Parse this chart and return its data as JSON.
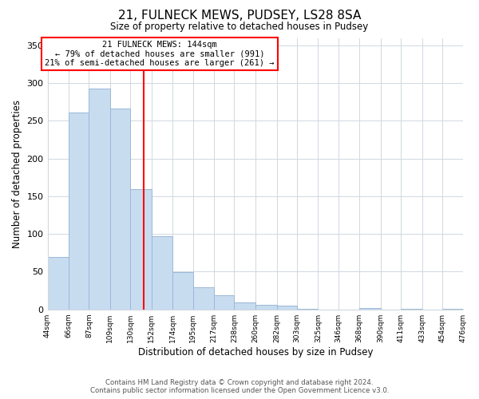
{
  "title": "21, FULNECK MEWS, PUDSEY, LS28 8SA",
  "subtitle": "Size of property relative to detached houses in Pudsey",
  "xlabel": "Distribution of detached houses by size in Pudsey",
  "ylabel": "Number of detached properties",
  "bar_color": "#c8dcf0",
  "bar_edge_color": "#9ab8d8",
  "vline_x": 144,
  "vline_color": "red",
  "annotation_title": "21 FULNECK MEWS: 144sqm",
  "annotation_line1": "← 79% of detached houses are smaller (991)",
  "annotation_line2": "21% of semi-detached houses are larger (261) →",
  "annotation_box_color": "white",
  "annotation_box_edge": "red",
  "bin_edges": [
    44,
    66,
    87,
    109,
    130,
    152,
    174,
    195,
    217,
    238,
    260,
    282,
    303,
    325,
    346,
    368,
    390,
    411,
    433,
    454,
    476
  ],
  "bin_heights": [
    70,
    261,
    293,
    266,
    160,
    97,
    49,
    29,
    19,
    9,
    6,
    5,
    1,
    0,
    0,
    2,
    0,
    1,
    0,
    1
  ],
  "ylim": [
    0,
    360
  ],
  "yticks": [
    0,
    50,
    100,
    150,
    200,
    250,
    300,
    350
  ],
  "footer_line1": "Contains HM Land Registry data © Crown copyright and database right 2024.",
  "footer_line2": "Contains public sector information licensed under the Open Government Licence v3.0."
}
